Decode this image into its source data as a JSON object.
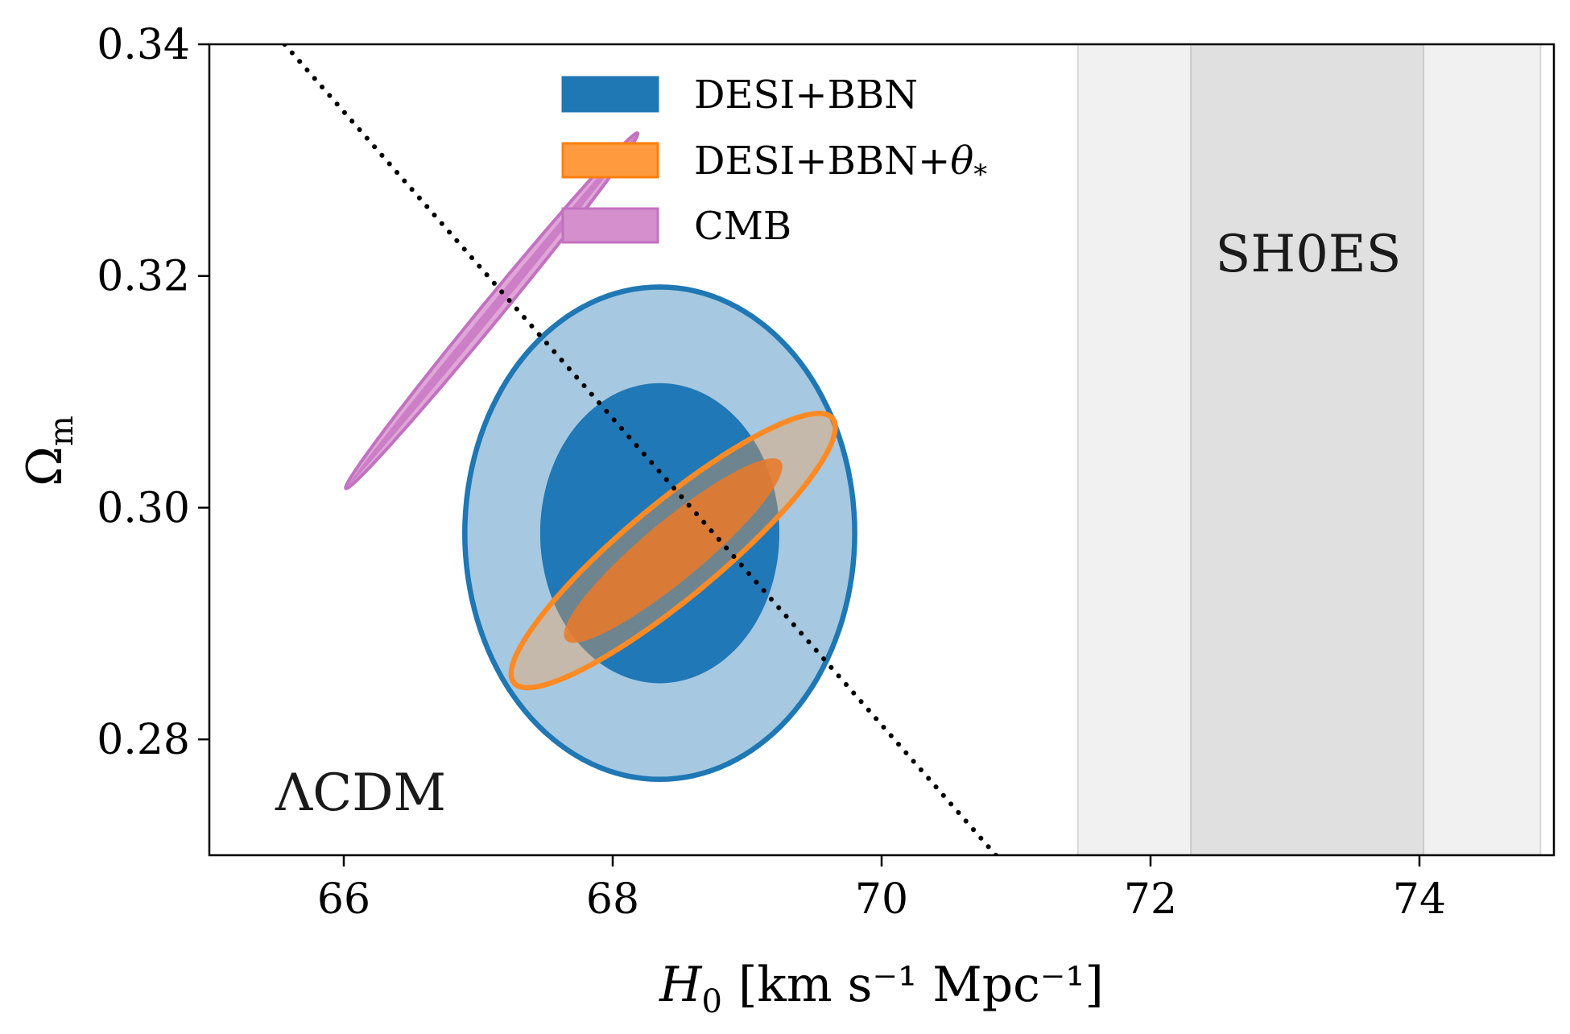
{
  "chart_data": {
    "type": "scatter",
    "title": "",
    "xlabel": {
      "main": "H",
      "sub": "0",
      "units": "[km s⁻¹ Mpc⁻¹]"
    },
    "ylabel": {
      "main": "Ω",
      "sub": "m"
    },
    "xlim": [
      65,
      75
    ],
    "ylim": [
      0.27,
      0.34
    ],
    "x_ticks": [
      66,
      68,
      70,
      72,
      74
    ],
    "y_ticks": [
      0.28,
      0.3,
      0.32,
      0.34
    ],
    "x_tick_labels": [
      "66",
      "68",
      "70",
      "72",
      "74"
    ],
    "y_tick_labels": [
      "0.28",
      "0.30",
      "0.32",
      "0.34"
    ],
    "grid": false,
    "legend_position": "top-center",
    "model_label": "ΛCDM",
    "shoes": {
      "label": "SH0ES",
      "inner_band": [
        72.3,
        74.03
      ],
      "outer_band": [
        71.46,
        74.9
      ]
    },
    "degeneracy_line": {
      "style": "dotted",
      "points": [
        [
          65.56,
          0.34
        ],
        [
          70.85,
          0.27
        ]
      ]
    },
    "series": [
      {
        "name": "DESI+BBN",
        "color": "#1f77b4",
        "contours": [
          {
            "level": "1sigma",
            "center": [
              68.35,
              0.2978
            ],
            "width": 1.77,
            "height": 0.0258,
            "angle_deg": 0
          },
          {
            "level": "2sigma",
            "center": [
              68.35,
              0.2978
            ],
            "width": 2.9,
            "height": 0.0425,
            "angle_deg": 0
          }
        ]
      },
      {
        "name": "DESI+BBN+θ*",
        "legend_main": "DESI+BBN+",
        "legend_symbol": "θ",
        "legend_sub": "*",
        "color": "#ff7f0e",
        "contours": [
          {
            "level": "1sigma",
            "center": [
              68.45,
              0.2963
            ],
            "major": 2.08,
            "minor": 0.44,
            "angle_deg": 39.7
          },
          {
            "level": "2sigma",
            "center": [
              68.45,
              0.2963
            ],
            "major": 3.08,
            "minor": 0.7,
            "angle_deg": 39.7
          }
        ]
      },
      {
        "name": "CMB",
        "color": "#c272c0",
        "contours": [
          {
            "level": "1sigma",
            "center": [
              67.1,
              0.317
            ],
            "major": 3.36,
            "minor": 0.065,
            "angle_deg": 50.6
          },
          {
            "level": "2sigma",
            "center": [
              67.1,
              0.317
            ],
            "major": 3.42,
            "minor": 0.15,
            "angle_deg": 50.6
          }
        ]
      }
    ]
  }
}
